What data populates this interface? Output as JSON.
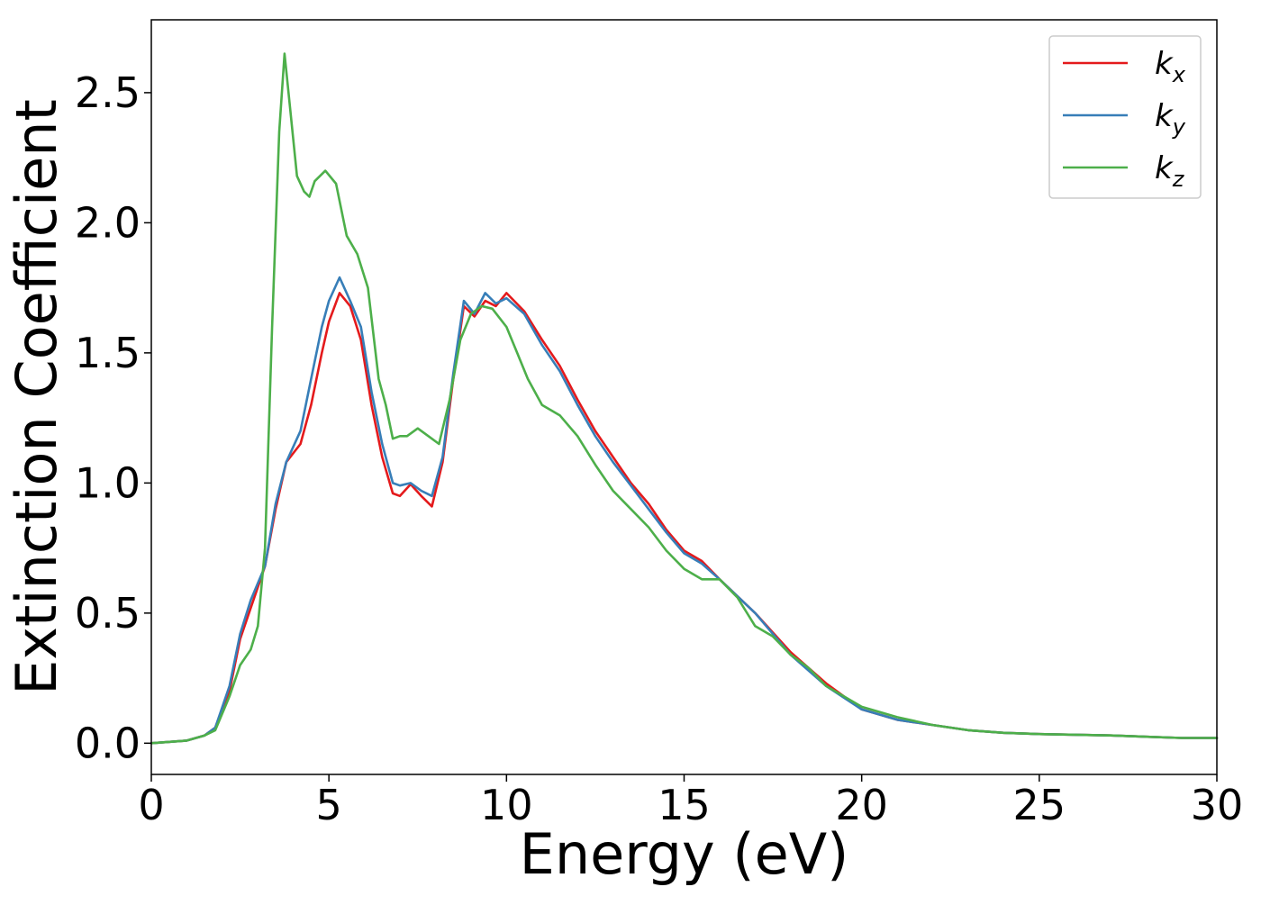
{
  "chart_data": {
    "type": "line",
    "title": "",
    "xlabel": "Energy (eV)",
    "ylabel": "Extinction Coefficient",
    "xlim": [
      0,
      30
    ],
    "ylim": [
      -0.12,
      2.78
    ],
    "xticks": [
      0,
      5,
      10,
      15,
      20,
      25,
      30
    ],
    "yticks": [
      0.0,
      0.5,
      1.0,
      1.5,
      2.0,
      2.5
    ],
    "xtick_labels": [
      "0",
      "5",
      "10",
      "15",
      "20",
      "25",
      "30"
    ],
    "ytick_labels": [
      "0.0",
      "0.5",
      "1.0",
      "1.5",
      "2.0",
      "2.5"
    ],
    "grid": false,
    "legend_position": "top-right",
    "series": [
      {
        "name": "k_x",
        "legend_base": "k",
        "legend_sub": "x",
        "color": "#e41a1c",
        "points": [
          [
            0,
            0
          ],
          [
            1,
            0.01
          ],
          [
            1.5,
            0.03
          ],
          [
            1.8,
            0.06
          ],
          [
            2.2,
            0.2
          ],
          [
            2.5,
            0.4
          ],
          [
            2.8,
            0.52
          ],
          [
            3.2,
            0.68
          ],
          [
            3.5,
            0.9
          ],
          [
            3.8,
            1.08
          ],
          [
            4.2,
            1.15
          ],
          [
            4.5,
            1.3
          ],
          [
            4.8,
            1.5
          ],
          [
            5.0,
            1.62
          ],
          [
            5.3,
            1.73
          ],
          [
            5.6,
            1.68
          ],
          [
            5.9,
            1.55
          ],
          [
            6.2,
            1.3
          ],
          [
            6.5,
            1.1
          ],
          [
            6.8,
            0.96
          ],
          [
            7.0,
            0.95
          ],
          [
            7.3,
            0.995
          ],
          [
            7.6,
            0.95
          ],
          [
            7.9,
            0.91
          ],
          [
            8.2,
            1.08
          ],
          [
            8.5,
            1.4
          ],
          [
            8.8,
            1.68
          ],
          [
            9.1,
            1.64
          ],
          [
            9.4,
            1.7
          ],
          [
            9.7,
            1.68
          ],
          [
            10.0,
            1.73
          ],
          [
            10.5,
            1.66
          ],
          [
            11.0,
            1.55
          ],
          [
            11.5,
            1.45
          ],
          [
            12.0,
            1.32
          ],
          [
            12.5,
            1.2
          ],
          [
            13.0,
            1.1
          ],
          [
            13.5,
            1.0
          ],
          [
            14.0,
            0.92
          ],
          [
            14.5,
            0.82
          ],
          [
            15.0,
            0.74
          ],
          [
            15.5,
            0.7
          ],
          [
            16.0,
            0.63
          ],
          [
            17.0,
            0.5
          ],
          [
            18.0,
            0.35
          ],
          [
            19.0,
            0.23
          ],
          [
            20.0,
            0.13
          ],
          [
            21.0,
            0.09
          ],
          [
            22.0,
            0.07
          ],
          [
            23.0,
            0.05
          ],
          [
            24.0,
            0.04
          ],
          [
            25.0,
            0.035
          ],
          [
            27.0,
            0.03
          ],
          [
            29.0,
            0.02
          ],
          [
            30.0,
            0.02
          ]
        ]
      },
      {
        "name": "k_y",
        "legend_base": "k",
        "legend_sub": "y",
        "color": "#377eb8",
        "points": [
          [
            0,
            0
          ],
          [
            1,
            0.01
          ],
          [
            1.5,
            0.03
          ],
          [
            1.8,
            0.06
          ],
          [
            2.2,
            0.22
          ],
          [
            2.5,
            0.42
          ],
          [
            2.8,
            0.55
          ],
          [
            3.2,
            0.68
          ],
          [
            3.5,
            0.92
          ],
          [
            3.8,
            1.08
          ],
          [
            4.2,
            1.2
          ],
          [
            4.5,
            1.4
          ],
          [
            4.8,
            1.6
          ],
          [
            5.0,
            1.7
          ],
          [
            5.3,
            1.79
          ],
          [
            5.6,
            1.7
          ],
          [
            5.9,
            1.6
          ],
          [
            6.2,
            1.35
          ],
          [
            6.5,
            1.15
          ],
          [
            6.8,
            1.0
          ],
          [
            7.0,
            0.99
          ],
          [
            7.3,
            1.0
          ],
          [
            7.6,
            0.97
          ],
          [
            7.9,
            0.95
          ],
          [
            8.2,
            1.1
          ],
          [
            8.5,
            1.42
          ],
          [
            8.8,
            1.7
          ],
          [
            9.1,
            1.65
          ],
          [
            9.4,
            1.73
          ],
          [
            9.7,
            1.69
          ],
          [
            10.0,
            1.71
          ],
          [
            10.5,
            1.65
          ],
          [
            11.0,
            1.53
          ],
          [
            11.5,
            1.43
          ],
          [
            12.0,
            1.3
          ],
          [
            12.5,
            1.18
          ],
          [
            13.0,
            1.08
          ],
          [
            13.5,
            0.99
          ],
          [
            14.0,
            0.9
          ],
          [
            14.5,
            0.81
          ],
          [
            15.0,
            0.73
          ],
          [
            15.5,
            0.69
          ],
          [
            16.0,
            0.63
          ],
          [
            17.0,
            0.5
          ],
          [
            18.0,
            0.34
          ],
          [
            19.0,
            0.22
          ],
          [
            20.0,
            0.13
          ],
          [
            21.0,
            0.09
          ],
          [
            22.0,
            0.07
          ],
          [
            23.0,
            0.05
          ],
          [
            24.0,
            0.04
          ],
          [
            25.0,
            0.035
          ],
          [
            27.0,
            0.03
          ],
          [
            29.0,
            0.02
          ],
          [
            30.0,
            0.02
          ]
        ]
      },
      {
        "name": "k_z",
        "legend_base": "k",
        "legend_sub": "z",
        "color": "#4daf4a",
        "points": [
          [
            0,
            0
          ],
          [
            1,
            0.01
          ],
          [
            1.5,
            0.03
          ],
          [
            1.8,
            0.05
          ],
          [
            2.2,
            0.18
          ],
          [
            2.5,
            0.3
          ],
          [
            2.8,
            0.36
          ],
          [
            3.0,
            0.45
          ],
          [
            3.2,
            0.75
          ],
          [
            3.4,
            1.6
          ],
          [
            3.6,
            2.35
          ],
          [
            3.75,
            2.65
          ],
          [
            3.9,
            2.45
          ],
          [
            4.1,
            2.18
          ],
          [
            4.3,
            2.12
          ],
          [
            4.45,
            2.1
          ],
          [
            4.6,
            2.16
          ],
          [
            4.9,
            2.2
          ],
          [
            5.2,
            2.15
          ],
          [
            5.5,
            1.95
          ],
          [
            5.8,
            1.88
          ],
          [
            6.1,
            1.75
          ],
          [
            6.4,
            1.4
          ],
          [
            6.6,
            1.3
          ],
          [
            6.8,
            1.17
          ],
          [
            7.0,
            1.18
          ],
          [
            7.2,
            1.18
          ],
          [
            7.5,
            1.21
          ],
          [
            7.8,
            1.18
          ],
          [
            8.1,
            1.15
          ],
          [
            8.4,
            1.32
          ],
          [
            8.7,
            1.55
          ],
          [
            9.0,
            1.65
          ],
          [
            9.3,
            1.68
          ],
          [
            9.6,
            1.67
          ],
          [
            10.0,
            1.6
          ],
          [
            10.3,
            1.5
          ],
          [
            10.6,
            1.4
          ],
          [
            11.0,
            1.3
          ],
          [
            11.5,
            1.26
          ],
          [
            12.0,
            1.18
          ],
          [
            12.5,
            1.07
          ],
          [
            13.0,
            0.97
          ],
          [
            13.5,
            0.9
          ],
          [
            14.0,
            0.83
          ],
          [
            14.5,
            0.74
          ],
          [
            15.0,
            0.67
          ],
          [
            15.5,
            0.63
          ],
          [
            16.0,
            0.63
          ],
          [
            16.5,
            0.56
          ],
          [
            17.0,
            0.45
          ],
          [
            17.5,
            0.41
          ],
          [
            18.0,
            0.34
          ],
          [
            18.5,
            0.29
          ],
          [
            19.0,
            0.22
          ],
          [
            20.0,
            0.14
          ],
          [
            21.0,
            0.1
          ],
          [
            22.0,
            0.07
          ],
          [
            23.0,
            0.05
          ],
          [
            24.0,
            0.04
          ],
          [
            25.0,
            0.035
          ],
          [
            27.0,
            0.03
          ],
          [
            29.0,
            0.02
          ],
          [
            30.0,
            0.02
          ]
        ]
      }
    ]
  }
}
